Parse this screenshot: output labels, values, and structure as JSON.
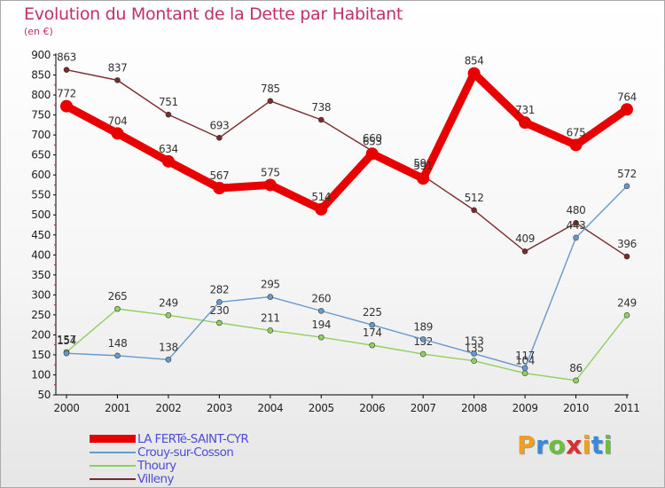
{
  "title": "Evolution du Montant de la Dette par Habitant",
  "subtitle": "(en €)",
  "brand": {
    "letters": [
      "P",
      "r",
      "o",
      "x",
      "i",
      "t",
      "i"
    ],
    "colors": [
      "#f0a020",
      "#3a8ad8",
      "#6cbf3c",
      "#d83030",
      "#f0a020",
      "#3a8ad8",
      "#6cbf3c"
    ]
  },
  "chart_data": {
    "type": "line",
    "x": [
      "2000",
      "2001",
      "2002",
      "2003",
      "2004",
      "2005",
      "2006",
      "2007",
      "2008",
      "2009",
      "2010",
      "2011"
    ],
    "ylim": [
      50,
      900
    ],
    "yticks": [
      50,
      100,
      150,
      200,
      250,
      300,
      350,
      400,
      450,
      500,
      550,
      600,
      650,
      700,
      750,
      800,
      850,
      900
    ],
    "grid": false,
    "legend_position": "bottom-left",
    "series": [
      {
        "name": "Villeny",
        "color": "#7a2a2a",
        "values": [
          863,
          837,
          751,
          693,
          785,
          738,
          660,
          598,
          512,
          409,
          480,
          396
        ]
      },
      {
        "name": "Thoury",
        "color": "#90d060",
        "values": [
          157,
          265,
          249,
          230,
          211,
          194,
          174,
          152,
          135,
          104,
          86,
          249
        ]
      },
      {
        "name": "Crouy-sur-Cosson",
        "color": "#6699cc",
        "values": [
          154,
          148,
          138,
          282,
          295,
          260,
          225,
          189,
          153,
          117,
          443,
          572
        ]
      },
      {
        "name": "LA FERTé-SAINT-CYR",
        "color": "#e80000",
        "values": [
          772,
          704,
          634,
          567,
          575,
          514,
          653,
          591,
          854,
          731,
          675,
          764
        ]
      }
    ]
  }
}
